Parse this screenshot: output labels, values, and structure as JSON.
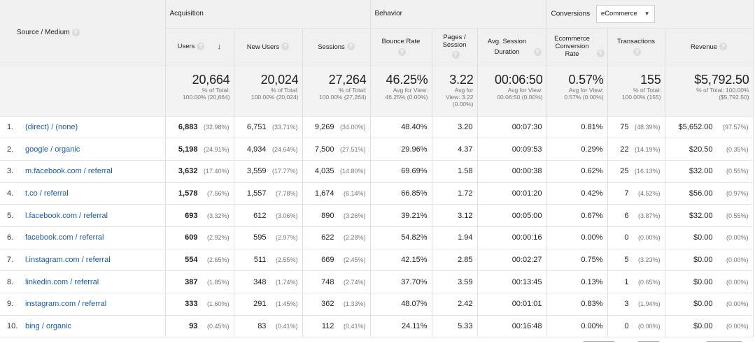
{
  "groups": {
    "source_medium": "Source / Medium",
    "acquisition": "Acquisition",
    "behavior": "Behavior",
    "conversions": "Conversions",
    "conversions_select": "eCommerce"
  },
  "columns": {
    "users": "Users",
    "new_users": "New Users",
    "sessions": "Sessions",
    "bounce_rate": "Bounce Rate",
    "pages_session": "Pages / Session",
    "avg_session_duration": "Avg. Session Duration",
    "ecommerce_conversion_rate": "Ecommerce Conversion Rate",
    "transactions": "Transactions",
    "revenue": "Revenue"
  },
  "totals": {
    "users": {
      "value": "20,664",
      "sub1": "% of Total:",
      "sub2": "100.00% (20,664)"
    },
    "new_users": {
      "value": "20,024",
      "sub1": "% of Total:",
      "sub2": "100.00% (20,024)"
    },
    "sessions": {
      "value": "27,264",
      "sub1": "% of Total:",
      "sub2": "100.00% (27,264)"
    },
    "bounce_rate": {
      "value": "46.25%",
      "sub1": "Avg for View:",
      "sub2": "46.25% (0.00%)"
    },
    "pages_session": {
      "value": "3.22",
      "sub1": "Avg for",
      "sub2": "View: 3.22",
      "sub3": "(0.00%)"
    },
    "avg_session_duration": {
      "value": "00:06:50",
      "sub1": "Avg for View:",
      "sub2": "00:06:50 (0.00%)"
    },
    "ecommerce_conversion_rate": {
      "value": "0.57%",
      "sub1": "Avg for View:",
      "sub2": "0.57% (0.00%)"
    },
    "transactions": {
      "value": "155",
      "sub1": "% of Total:",
      "sub2": "100.00% (155)"
    },
    "revenue": {
      "value": "$5,792.50",
      "sub1": "% of Total: 100.00%",
      "sub2": "($5,792.50)"
    }
  },
  "rows": [
    {
      "num": "1.",
      "source": "(direct) / (none)",
      "users": "6,883",
      "users_pct": "(32.98%)",
      "new_users": "6,751",
      "new_users_pct": "(33.71%)",
      "sessions": "9,269",
      "sessions_pct": "(34.00%)",
      "bounce_rate": "48.40%",
      "pages_session": "3.20",
      "avg_duration": "00:07:30",
      "conv_rate": "0.81%",
      "transactions": "75",
      "transactions_pct": "(48.39%)",
      "revenue": "$5,652.00",
      "revenue_pct": "(97.57%)"
    },
    {
      "num": "2.",
      "source": "google / organic",
      "users": "5,198",
      "users_pct": "(24.91%)",
      "new_users": "4,934",
      "new_users_pct": "(24.64%)",
      "sessions": "7,500",
      "sessions_pct": "(27.51%)",
      "bounce_rate": "29.96%",
      "pages_session": "4.37",
      "avg_duration": "00:09:53",
      "conv_rate": "0.29%",
      "transactions": "22",
      "transactions_pct": "(14.19%)",
      "revenue": "$20.50",
      "revenue_pct": "(0.35%)"
    },
    {
      "num": "3.",
      "source": "m.facebook.com / referral",
      "users": "3,632",
      "users_pct": "(17.40%)",
      "new_users": "3,559",
      "new_users_pct": "(17.77%)",
      "sessions": "4,035",
      "sessions_pct": "(14.80%)",
      "bounce_rate": "69.69%",
      "pages_session": "1.58",
      "avg_duration": "00:00:38",
      "conv_rate": "0.62%",
      "transactions": "25",
      "transactions_pct": "(16.13%)",
      "revenue": "$32.00",
      "revenue_pct": "(0.55%)"
    },
    {
      "num": "4.",
      "source": "t.co / referral",
      "users": "1,578",
      "users_pct": "(7.56%)",
      "new_users": "1,557",
      "new_users_pct": "(7.78%)",
      "sessions": "1,674",
      "sessions_pct": "(6.14%)",
      "bounce_rate": "66.85%",
      "pages_session": "1.72",
      "avg_duration": "00:01:20",
      "conv_rate": "0.42%",
      "transactions": "7",
      "transactions_pct": "(4.52%)",
      "revenue": "$56.00",
      "revenue_pct": "(0.97%)"
    },
    {
      "num": "5.",
      "source": "l.facebook.com / referral",
      "users": "693",
      "users_pct": "(3.32%)",
      "new_users": "612",
      "new_users_pct": "(3.06%)",
      "sessions": "890",
      "sessions_pct": "(3.26%)",
      "bounce_rate": "39.21%",
      "pages_session": "3.12",
      "avg_duration": "00:05:00",
      "conv_rate": "0.67%",
      "transactions": "6",
      "transactions_pct": "(3.87%)",
      "revenue": "$32.00",
      "revenue_pct": "(0.55%)"
    },
    {
      "num": "6.",
      "source": "facebook.com / referral",
      "users": "609",
      "users_pct": "(2.92%)",
      "new_users": "595",
      "new_users_pct": "(2.97%)",
      "sessions": "622",
      "sessions_pct": "(2.28%)",
      "bounce_rate": "54.82%",
      "pages_session": "1.94",
      "avg_duration": "00:00:16",
      "conv_rate": "0.00%",
      "transactions": "0",
      "transactions_pct": "(0.00%)",
      "revenue": "$0.00",
      "revenue_pct": "(0.00%)"
    },
    {
      "num": "7.",
      "source": "l.instagram.com / referral",
      "users": "554",
      "users_pct": "(2.65%)",
      "new_users": "511",
      "new_users_pct": "(2.55%)",
      "sessions": "669",
      "sessions_pct": "(2.45%)",
      "bounce_rate": "42.15%",
      "pages_session": "2.85",
      "avg_duration": "00:02:27",
      "conv_rate": "0.75%",
      "transactions": "5",
      "transactions_pct": "(3.23%)",
      "revenue": "$0.00",
      "revenue_pct": "(0.00%)"
    },
    {
      "num": "8.",
      "source": "linkedin.com / referral",
      "users": "387",
      "users_pct": "(1.85%)",
      "new_users": "348",
      "new_users_pct": "(1.74%)",
      "sessions": "748",
      "sessions_pct": "(2.74%)",
      "bounce_rate": "37.70%",
      "pages_session": "3.59",
      "avg_duration": "00:13:45",
      "conv_rate": "0.13%",
      "transactions": "1",
      "transactions_pct": "(0.65%)",
      "revenue": "$0.00",
      "revenue_pct": "(0.00%)"
    },
    {
      "num": "9.",
      "source": "instagram.com / referral",
      "users": "333",
      "users_pct": "(1.60%)",
      "new_users": "291",
      "new_users_pct": "(1.45%)",
      "sessions": "362",
      "sessions_pct": "(1.33%)",
      "bounce_rate": "48.07%",
      "pages_session": "2.42",
      "avg_duration": "00:01:01",
      "conv_rate": "0.83%",
      "transactions": "3",
      "transactions_pct": "(1.94%)",
      "revenue": "$0.00",
      "revenue_pct": "(0.00%)"
    },
    {
      "num": "10.",
      "source": "bing / organic",
      "users": "93",
      "users_pct": "(0.45%)",
      "new_users": "83",
      "new_users_pct": "(0.41%)",
      "sessions": "112",
      "sessions_pct": "(0.41%)",
      "bounce_rate": "24.11%",
      "pages_session": "5.33",
      "avg_duration": "00:16:48",
      "conv_rate": "0.00%",
      "transactions": "0",
      "transactions_pct": "(0.00%)",
      "revenue": "$0.00",
      "revenue_pct": "(0.00%)"
    }
  ],
  "colors": {
    "link": "#1a5fa8",
    "header_bg": "#f0f0f0",
    "totals_bg": "#f3f3f3",
    "muted": "#777777"
  },
  "icons": {
    "help": "help-circle-icon",
    "sort": "arrow-down-icon",
    "dropdown": "caret-down-icon"
  }
}
